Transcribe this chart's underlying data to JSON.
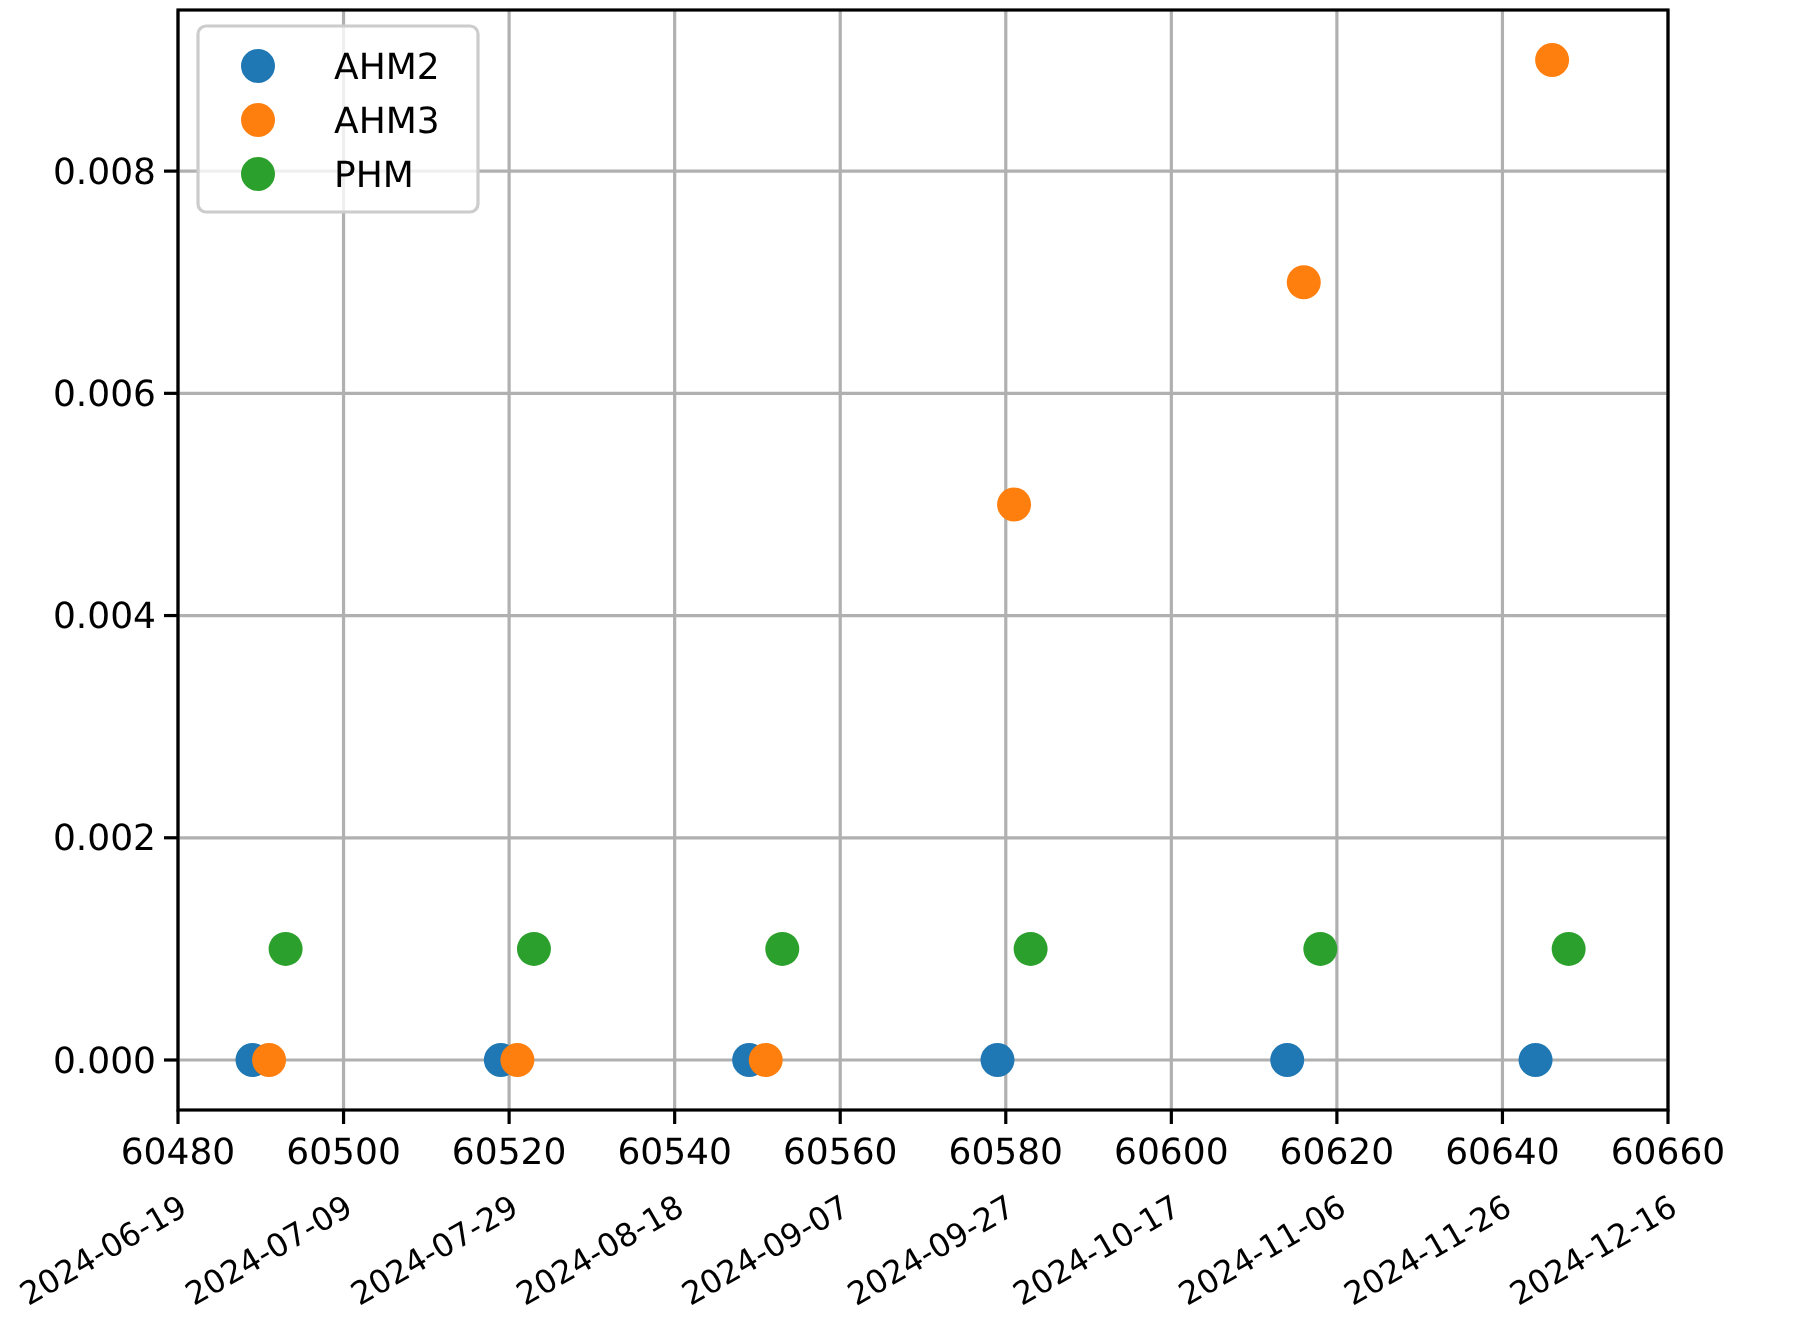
{
  "chart_data": {
    "type": "scatter",
    "marker": "circle",
    "grid": true,
    "legend": "top left",
    "xlim": [
      60480,
      60660
    ],
    "xticks": [
      60480,
      60500,
      60520,
      60540,
      60560,
      60580,
      60600,
      60620,
      60640,
      60660
    ],
    "x2lim": [
      "2024-06-19",
      "2024-12-16"
    ],
    "x2ticks": [
      "2024-06-19",
      "2024-07-09",
      "2024-07-29",
      "2024-08-18",
      "2024-09-07",
      "2024-09-27",
      "2024-10-17",
      "2024-11-06",
      "2024-11-26",
      "2024-12-16"
    ],
    "ylim": [
      -0.00045,
      0.00945
    ],
    "yticks": [
      {
        "value": 0,
        "label": "0.000"
      },
      {
        "value": 0.002,
        "label": "0.002"
      },
      {
        "value": 0.004,
        "label": "0.004"
      },
      {
        "value": 0.006,
        "label": "0.006"
      },
      {
        "value": 0.008,
        "label": "0.008"
      }
    ],
    "series": [
      {
        "name": "AHM2",
        "color": "#1f77b4",
        "x": [
          60489,
          60519,
          60549,
          60579,
          60614,
          60644
        ],
        "values": [
          0,
          0,
          0,
          0,
          0,
          0
        ]
      },
      {
        "name": "AHM3",
        "color": "#ff7f0e",
        "x": [
          60491,
          60521,
          60551,
          60581,
          60616,
          60646
        ],
        "values": [
          0,
          0,
          0,
          0.005,
          0.007,
          0.009
        ]
      },
      {
        "name": "PHM",
        "color": "#2ca02c",
        "x": [
          60493,
          60523,
          60553,
          60583,
          60618,
          60648
        ],
        "values": [
          0.001,
          0.001,
          0.001,
          0.001,
          0.001,
          0.001
        ]
      }
    ]
  }
}
